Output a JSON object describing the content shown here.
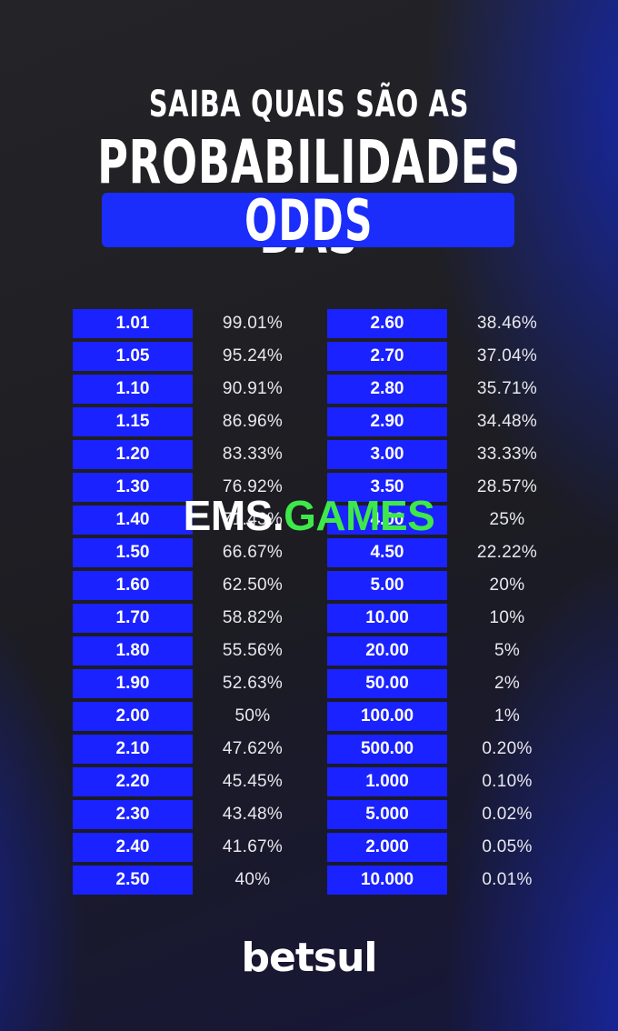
{
  "header": {
    "line1": "SAIBA QUAIS SÃO AS",
    "line2": "PROBABILIDADES DAS",
    "line3": "ODDS"
  },
  "table": {
    "left": [
      {
        "odd": "1.01",
        "pct": "99.01%"
      },
      {
        "odd": "1.05",
        "pct": "95.24%"
      },
      {
        "odd": "1.10",
        "pct": "90.91%"
      },
      {
        "odd": "1.15",
        "pct": "86.96%"
      },
      {
        "odd": "1.20",
        "pct": "83.33%"
      },
      {
        "odd": "1.30",
        "pct": "76.92%"
      },
      {
        "odd": "1.40",
        "pct": "71.43%"
      },
      {
        "odd": "1.50",
        "pct": "66.67%"
      },
      {
        "odd": "1.60",
        "pct": "62.50%"
      },
      {
        "odd": "1.70",
        "pct": "58.82%"
      },
      {
        "odd": "1.80",
        "pct": "55.56%"
      },
      {
        "odd": "1.90",
        "pct": "52.63%"
      },
      {
        "odd": "2.00",
        "pct": "50%"
      },
      {
        "odd": "2.10",
        "pct": "47.62%"
      },
      {
        "odd": "2.20",
        "pct": "45.45%"
      },
      {
        "odd": "2.30",
        "pct": "43.48%"
      },
      {
        "odd": "2.40",
        "pct": "41.67%"
      },
      {
        "odd": "2.50",
        "pct": "40%"
      }
    ],
    "right": [
      {
        "odd": "2.60",
        "pct": "38.46%"
      },
      {
        "odd": "2.70",
        "pct": "37.04%"
      },
      {
        "odd": "2.80",
        "pct": "35.71%"
      },
      {
        "odd": "2.90",
        "pct": "34.48%"
      },
      {
        "odd": "3.00",
        "pct": "33.33%"
      },
      {
        "odd": "3.50",
        "pct": "28.57%"
      },
      {
        "odd": "4.00",
        "pct": "25%"
      },
      {
        "odd": "4.50",
        "pct": "22.22%"
      },
      {
        "odd": "5.00",
        "pct": "20%"
      },
      {
        "odd": "10.00",
        "pct": "10%"
      },
      {
        "odd": "20.00",
        "pct": "5%"
      },
      {
        "odd": "50.00",
        "pct": "2%"
      },
      {
        "odd": "100.00",
        "pct": "1%"
      },
      {
        "odd": "500.00",
        "pct": "0.20%"
      },
      {
        "odd": "1.000",
        "pct": "0.10%"
      },
      {
        "odd": "5.000",
        "pct": "0.02%"
      },
      {
        "odd": "2.000",
        "pct": "0.05%"
      },
      {
        "odd": "10.000",
        "pct": "0.01%"
      }
    ]
  },
  "watermark": {
    "part1": "EMS.",
    "part2": "GAMES"
  },
  "logo": "betsul",
  "colors": {
    "accent": "#1a22ff",
    "watermark_green": "#3ee84a"
  }
}
